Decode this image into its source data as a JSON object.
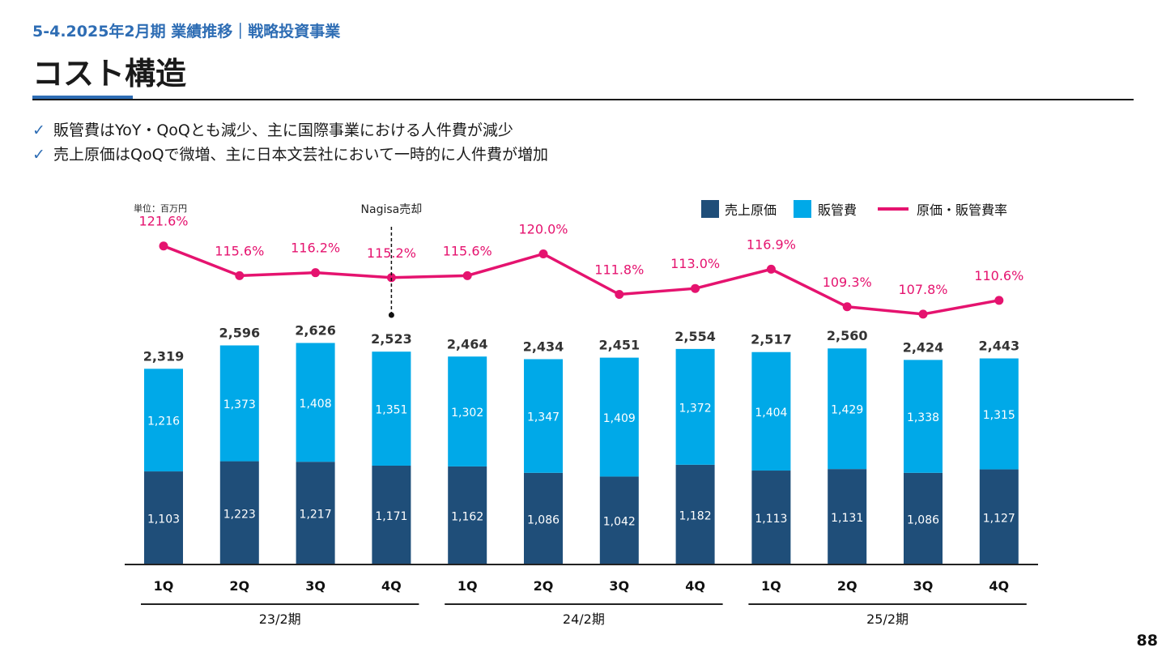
{
  "header": {
    "subtitle": "5-4.2025年2月期 業績推移｜戦略投資事業",
    "title": "コスト構造"
  },
  "bullets": [
    {
      "icon": "check-icon",
      "text": "販管費はYoY・QoQとも減少、主に国際事業における人件費が減少"
    },
    {
      "icon": "check-icon",
      "text": "売上原価はQoQで微増、主に日本文芸社において一時的に人件費が増加"
    }
  ],
  "page_number": "88",
  "chart_data": {
    "type": "bar",
    "stacked": true,
    "unit_label": "単位：百万円",
    "annotation": "Nagisa売却",
    "categories": [
      "1Q",
      "2Q",
      "3Q",
      "4Q",
      "1Q",
      "2Q",
      "3Q",
      "4Q",
      "1Q",
      "2Q",
      "3Q",
      "4Q"
    ],
    "groups": [
      {
        "label": "23/2期",
        "span": [
          0,
          3
        ]
      },
      {
        "label": "24/2期",
        "span": [
          4,
          7
        ]
      },
      {
        "label": "25/2期",
        "span": [
          8,
          11
        ]
      }
    ],
    "series": [
      {
        "name": "売上原価",
        "color": "#1F4E79",
        "values": [
          1103,
          1223,
          1217,
          1171,
          1162,
          1086,
          1042,
          1182,
          1113,
          1131,
          1086,
          1127
        ]
      },
      {
        "name": "販管費",
        "color": "#00A9E8",
        "values": [
          1216,
          1373,
          1408,
          1351,
          1302,
          1347,
          1409,
          1372,
          1404,
          1429,
          1338,
          1315
        ]
      }
    ],
    "totals": [
      "2,319",
      "2,596",
      "2,626",
      "2,523",
      "2,464",
      "2,434",
      "2,451",
      "2,554",
      "2,517",
      "2,560",
      "2,424",
      "2,443"
    ],
    "line": {
      "name": "原価・販管費率",
      "color": "#E5136F",
      "values": [
        121.6,
        115.6,
        116.2,
        115.2,
        115.6,
        120.0,
        111.8,
        113.0,
        116.9,
        109.3,
        107.8,
        110.6
      ],
      "labels": [
        "121.6%",
        "115.6%",
        "116.2%",
        "115.2%",
        "115.6%",
        "120.0%",
        "111.8%",
        "113.0%",
        "116.9%",
        "109.3%",
        "107.8%",
        "110.6%"
      ]
    },
    "legend_position": "top-right",
    "grid": false
  }
}
